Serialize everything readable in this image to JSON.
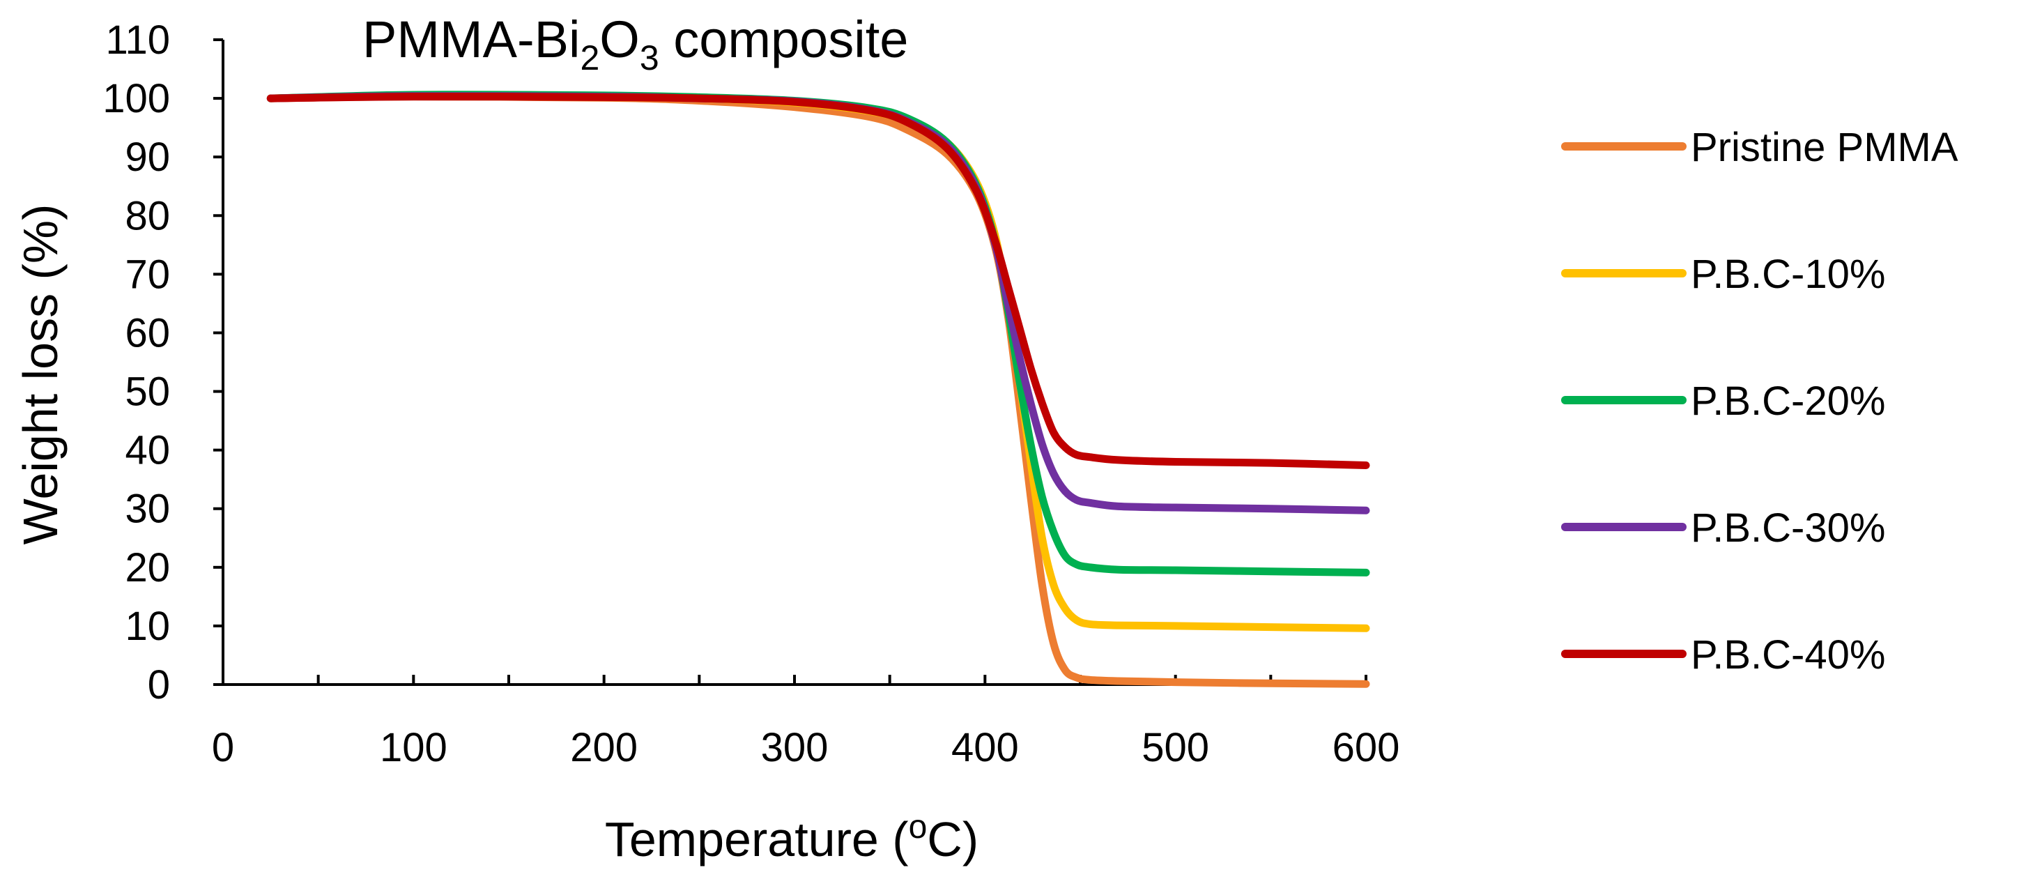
{
  "chart_data": {
    "type": "line",
    "title": {
      "base": "PMMA-Bi",
      "sub1": "2",
      "mid": "O",
      "sub2": "3",
      "tail": " composite"
    },
    "xlabel": {
      "pre": "Temperature (",
      "sup": "o",
      "post": "C)"
    },
    "ylabel": "Weight loss (%)",
    "xlim": [
      0,
      600
    ],
    "ylim": [
      0,
      110
    ],
    "xticks": [
      "0",
      "100",
      "200",
      "300",
      "400",
      "500",
      "600"
    ],
    "yticks": [
      "0",
      "10",
      "20",
      "30",
      "40",
      "50",
      "60",
      "70",
      "80",
      "90",
      "100",
      "110"
    ],
    "grid": false,
    "legend_position": "right",
    "series": [
      {
        "name": "Pristine PMMA",
        "color": "#ED7D31",
        "x": [
          25,
          100,
          200,
          250,
          300,
          340,
          360,
          380,
          395,
          405,
          412,
          418,
          424,
          430,
          436,
          442,
          448,
          455,
          470,
          500,
          550,
          600
        ],
        "y": [
          100,
          100.3,
          100.1,
          99.6,
          98.5,
          96.8,
          94.5,
          90.5,
          84,
          75,
          63,
          48,
          32,
          17,
          7,
          2.5,
          1.2,
          0.8,
          0.6,
          0.4,
          0.2,
          0.1
        ]
      },
      {
        "name": "P.B.C-10%",
        "color": "#FFC000",
        "x": [
          25,
          100,
          200,
          250,
          300,
          340,
          360,
          380,
          395,
          405,
          412,
          418,
          424,
          430,
          436,
          442,
          448,
          455,
          470,
          500,
          550,
          600
        ],
        "y": [
          100,
          100.5,
          100.3,
          100,
          99.3,
          97.8,
          96,
          92.5,
          86,
          77,
          65,
          52,
          38,
          25,
          17,
          13,
          11,
          10.3,
          10.1,
          10,
          9.8,
          9.6
        ]
      },
      {
        "name": "P.B.C-20%",
        "color": "#00B050",
        "x": [
          25,
          100,
          200,
          250,
          300,
          340,
          360,
          380,
          395,
          405,
          412,
          418,
          424,
          430,
          436,
          442,
          448,
          455,
          470,
          500,
          550,
          600
        ],
        "y": [
          100,
          100.6,
          100.5,
          100.2,
          99.6,
          98.3,
          96.5,
          92.5,
          85.5,
          76,
          64,
          52,
          41,
          32,
          26,
          22,
          20.5,
          20,
          19.6,
          19.5,
          19.3,
          19.1
        ]
      },
      {
        "name": "P.B.C-30%",
        "color": "#7030A0",
        "x": [
          25,
          100,
          200,
          250,
          300,
          340,
          360,
          380,
          395,
          405,
          412,
          418,
          424,
          430,
          436,
          442,
          448,
          455,
          470,
          500,
          550,
          600
        ],
        "y": [
          100,
          100.4,
          100.3,
          100,
          99.5,
          98,
          96,
          92,
          85,
          75.5,
          65,
          56,
          48,
          41,
          36,
          33,
          31.5,
          31,
          30.4,
          30.2,
          30,
          29.7
        ]
      },
      {
        "name": "P.B.C-40%",
        "color": "#C00000",
        "x": [
          25,
          100,
          200,
          250,
          300,
          340,
          360,
          380,
          395,
          405,
          412,
          418,
          424,
          430,
          436,
          442,
          448,
          455,
          470,
          500,
          550,
          600
        ],
        "y": [
          100,
          100.3,
          100.2,
          100,
          99.4,
          97.9,
          95.8,
          91.5,
          84.5,
          76,
          68,
          61,
          54,
          48,
          43,
          40.5,
          39.2,
          38.8,
          38.3,
          38,
          37.8,
          37.4
        ]
      }
    ]
  }
}
